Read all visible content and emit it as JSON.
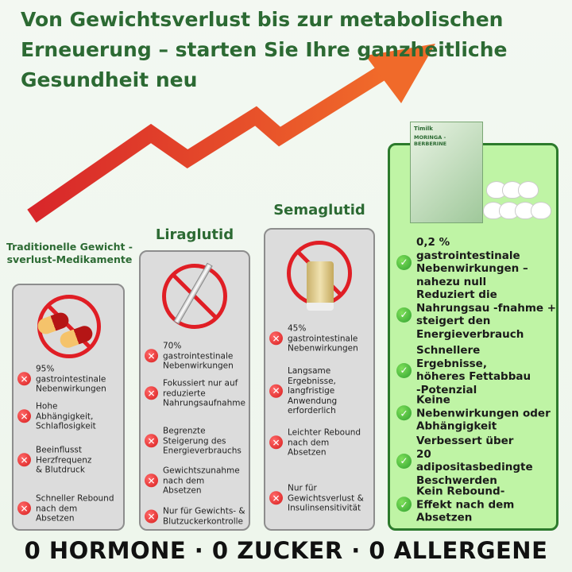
{
  "headline": "Von Gewichtsverlust bis zur metabolischen Erneuerung – starten Sie Ihre ganzheitliche Gesundheit neu",
  "colors": {
    "heading_green": "#2c6a33",
    "arrow": "#e8452c",
    "cross": "#d81c1c",
    "check": "#2fa12f",
    "highlight_bg": "#bff4a5"
  },
  "product": {
    "brand": "Timilk",
    "name": "MORINGA - BERBERINE"
  },
  "columns": [
    {
      "title": "Traditionelle Gewicht -sverlust-Medikamente",
      "image": "capsules-prohibited",
      "items": [
        "95% gastrointestinale Nebenwirkungen",
        "Hohe Abhängigkeit, Schlaflosigkeit",
        "Beeinflusst Herzfrequenz & Blutdruck",
        "Schneller Rebound nach dem Absetzen"
      ]
    },
    {
      "title": "Liraglutid",
      "image": "syringe-prohibited",
      "items": [
        "70% gastrointestinale Nebenwirkungen",
        "Fokussiert nur auf reduzierte Nahrungsaufnahme",
        "Begrenzte Steigerung des Energieverbrauchs",
        "Gewichtszunahme nach dem Absetzen",
        "Nur für Gewichts- & Blutzuckerkontrolle"
      ]
    },
    {
      "title": "Semaglutid",
      "image": "dropper-bottle-prohibited",
      "items": [
        "45% gastrointestinale Nebenwirkungen",
        "Langsame Ergebnisse, langfristige Anwendung erforderlich",
        "Leichter Rebound nach dem Absetzen",
        "Nur für Gewichtsverlust & Insulinsensitivität"
      ]
    },
    {
      "title": "",
      "image": "product-box-patches",
      "items": [
        "0,2 % gastrointestinale Nebenwirkungen – nahezu null",
        "Reduziert die Nahrungsau -fnahme + steigert den Energieverbrauch",
        "Schnellere Ergebnisse, höheres Fettabbau -Potenzial",
        "Keine Nebenwirkungen oder Abhängigkeit",
        "Verbessert über 20 adipositasbedingte Beschwerden",
        "Kein Rebound-Effekt nach dem Absetzen"
      ]
    }
  ],
  "footer": "0 HORMONE · 0 ZUCKER · 0 ALLERGENE"
}
